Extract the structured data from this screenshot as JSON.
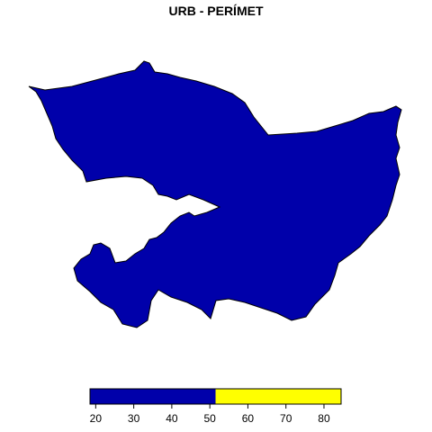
{
  "title": "URB - PERÍMET",
  "map": {
    "region_color": "#0000AA",
    "border_color": "#000000"
  },
  "legend": {
    "min": 18.5,
    "max": 84.5,
    "bins": [
      {
        "from": 18.5,
        "to": 51.5,
        "color": "#0000AA"
      },
      {
        "from": 51.5,
        "to": 84.5,
        "color": "#FFFF00"
      }
    ],
    "ticks": [
      {
        "value": 20,
        "label": "20"
      },
      {
        "value": 30,
        "label": "30"
      },
      {
        "value": 40,
        "label": "40"
      },
      {
        "value": 50,
        "label": "50"
      },
      {
        "value": 60,
        "label": "60"
      },
      {
        "value": 70,
        "label": "70"
      },
      {
        "value": 80,
        "label": "80"
      }
    ]
  }
}
